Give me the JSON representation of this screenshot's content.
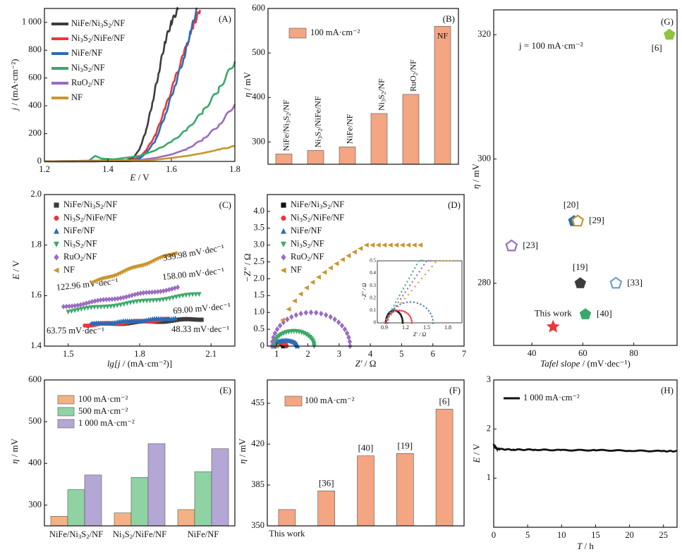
{
  "chart_data": [
    {
      "panel": "(A)",
      "type": "line",
      "xlabel_main": "E",
      "xlabel_unit": " / V",
      "ylabel_main": "j",
      "ylabel_unit": " / (mA·cm⁻²)",
      "xlim": [
        1.2,
        1.8
      ],
      "ylim": [
        0,
        1100
      ],
      "xticks": [
        1.2,
        1.4,
        1.6,
        1.8
      ],
      "xtick_labels": [
        "1.2",
        "1.4",
        "1.6",
        "1.8"
      ],
      "yticks": [
        0,
        200,
        400,
        600,
        800,
        1000
      ],
      "ytick_labels": [
        "0",
        "200",
        "400",
        "600",
        "800",
        "1 000"
      ],
      "legend_position": "top-left",
      "series": [
        {
          "name": "NiFe/Ni3S2/NF",
          "color": "#3c3c3c",
          "x": [
            1.2,
            1.45,
            1.48,
            1.5,
            1.52,
            1.54,
            1.56,
            1.58,
            1.6,
            1.62
          ],
          "y": [
            0,
            2,
            25,
            90,
            220,
            420,
            640,
            860,
            1000,
            1090
          ]
        },
        {
          "name": "Ni3S2/NiFe/NF",
          "color": "#e8383d",
          "x": [
            1.2,
            1.46,
            1.5,
            1.52,
            1.55,
            1.58,
            1.61,
            1.64,
            1.67,
            1.69
          ],
          "y": [
            0,
            2,
            30,
            80,
            190,
            380,
            580,
            780,
            980,
            1090
          ]
        },
        {
          "name": "NiFe/NF",
          "color": "#2b6cb8",
          "x": [
            1.2,
            1.47,
            1.5,
            1.52,
            1.55,
            1.58,
            1.61,
            1.64,
            1.66,
            1.68
          ],
          "y": [
            0,
            2,
            20,
            60,
            150,
            330,
            540,
            750,
            930,
            1090
          ]
        },
        {
          "name": "Ni3S2/NF",
          "color": "#3aa86a",
          "x": [
            1.2,
            1.34,
            1.36,
            1.38,
            1.42,
            1.5,
            1.55,
            1.6,
            1.65,
            1.7,
            1.75,
            1.8
          ],
          "y": [
            0,
            5,
            40,
            20,
            15,
            40,
            80,
            140,
            230,
            360,
            520,
            720
          ]
        },
        {
          "name": "RuO2/NF",
          "color": "#9a6cc0",
          "x": [
            1.2,
            1.5,
            1.55,
            1.6,
            1.65,
            1.7,
            1.75,
            1.8
          ],
          "y": [
            0,
            10,
            25,
            50,
            90,
            160,
            260,
            410
          ]
        },
        {
          "name": "NF",
          "color": "#c8962e",
          "x": [
            1.2,
            1.5,
            1.55,
            1.6,
            1.65,
            1.7,
            1.75,
            1.8
          ],
          "y": [
            0,
            5,
            12,
            25,
            40,
            60,
            85,
            110
          ]
        }
      ]
    },
    {
      "panel": "(B)",
      "type": "bar",
      "ylabel_main": "η",
      "ylabel_unit": " / mV",
      "ylim": [
        250,
        600
      ],
      "yticks": [
        300,
        400,
        500,
        600
      ],
      "ytick_labels": [
        "300",
        "400",
        "500",
        "600"
      ],
      "legend_label": "100 mA·cm⁻²",
      "bar_color": "#f4a582",
      "categories": [
        "NiFe/Ni3S2/NF",
        "Ni3S2/NiFe/NF",
        "NiFe/NF",
        "Ni3S2/NF",
        "RuO2/NF",
        "NF"
      ],
      "values": [
        273,
        281,
        289,
        364,
        407,
        560
      ]
    },
    {
      "panel": "(C)",
      "type": "scatter",
      "xlabel_main": "lg[j",
      "xlabel_unit": " / (mA·cm⁻²)]",
      "ylabel_main": "E",
      "ylabel_unit": " / V",
      "xlim": [
        1.4,
        2.2
      ],
      "ylim": [
        1.4,
        2.0
      ],
      "xticks": [
        1.5,
        1.8,
        2.1
      ],
      "xtick_labels": [
        "1.5",
        "1.8",
        "2.1"
      ],
      "yticks": [
        1.4,
        1.6,
        1.8,
        2.0
      ],
      "ytick_labels": [
        "1.4",
        "1.6",
        "1.8",
        "2.0"
      ],
      "legend_position": "top-left",
      "series": [
        {
          "name": "NiFe/Ni3S2/NF",
          "color": "#3c3c3c",
          "marker": "square",
          "x_range": [
            1.6,
            2.06
          ],
          "slope": 0.04833,
          "y_start": 1.485,
          "label": "48.33 mV·dec⁻¹"
        },
        {
          "name": "Ni3S2/NiFe/NF",
          "color": "#e8383d",
          "marker": "circle",
          "x_range": [
            1.57,
            1.92
          ],
          "slope": 0.06375,
          "y_start": 1.483,
          "label": "63.75 mV·dec⁻¹"
        },
        {
          "name": "NiFe/NF",
          "color": "#2b6cb8",
          "marker": "triangle-up",
          "x_range": [
            1.6,
            1.95
          ],
          "slope": 0.069,
          "y_start": 1.488,
          "label": "69.00 mV·dec⁻¹"
        },
        {
          "name": "Ni3S2/NF",
          "color": "#3aa86a",
          "marker": "triangle-down",
          "x_range": [
            1.5,
            2.05
          ],
          "slope": 0.12296,
          "y_start": 1.538,
          "label": "122.96 mV·dec⁻¹"
        },
        {
          "name": "RuO2/NF",
          "color": "#9a6cc0",
          "marker": "diamond",
          "x_range": [
            1.48,
            1.96
          ],
          "slope": 0.158,
          "y_start": 1.555,
          "label": "158.00 mV·dec⁻¹"
        },
        {
          "name": "NF",
          "color": "#c8962e",
          "marker": "triangle-left",
          "x_range": [
            1.6,
            1.95
          ],
          "slope": 0.33998,
          "y_start": 1.652,
          "label": "339.98 mV·dec⁻¹"
        }
      ]
    },
    {
      "panel": "(D)",
      "type": "scatter",
      "xlabel_main": "Z′",
      "xlabel_unit": " / Ω",
      "ylabel_main": "−Z″",
      "ylabel_unit": " / Ω",
      "xlim": [
        0.7,
        7
      ],
      "ylim": [
        0,
        4.5
      ],
      "xticks": [
        1,
        2,
        3,
        4,
        5,
        6,
        7
      ],
      "xtick_labels": [
        "1",
        "2",
        "3",
        "4",
        "5",
        "6",
        "7"
      ],
      "yticks": [
        0,
        0.5,
        1,
        1.5,
        2,
        2.5,
        3,
        3.5,
        4
      ],
      "ytick_labels": [
        "0",
        "0.5",
        "1.0",
        "1.5",
        "2.0",
        "2.5",
        "3.0",
        "3.5",
        "4.0"
      ],
      "legend_position": "top-left",
      "inset": {
        "xlabel": "Z′ / Ω",
        "ylabel": "−Z″ / Ω",
        "xlim": [
          0.8,
          2.0
        ],
        "ylim": [
          0,
          0.5
        ],
        "xticks": [
          0.9,
          1.2,
          1.5,
          1.8
        ],
        "xtick_labels": [
          "0.9",
          "1.2",
          "1.5",
          "1.8"
        ],
        "yticks": [
          0,
          0.1,
          0.2,
          0.3,
          0.4,
          0.5
        ],
        "ytick_labels": [
          "0",
          "0.1",
          "0.2",
          "0.3",
          "0.4",
          "0.5"
        ]
      },
      "series": [
        {
          "name": "NiFe/Ni3S2/NF",
          "color": "#111111",
          "marker": "square",
          "center": 1.07,
          "radius": 0.15,
          "scale": 0.65
        },
        {
          "name": "Ni3S2/NiFe/NF",
          "color": "#e8383d",
          "marker": "circle",
          "center": 1.11,
          "radius": 0.2,
          "scale": 0.5
        },
        {
          "name": "NiFe/NF",
          "color": "#2b6cb8",
          "marker": "triangle-up",
          "center": 1.28,
          "radius": 0.38,
          "scale": 0.45
        },
        {
          "name": "Ni3S2/NF",
          "color": "#3aa86a",
          "marker": "triangle-down",
          "center": 1.55,
          "radius": 0.65,
          "scale": 0.68
        },
        {
          "name": "RuO2/NF",
          "color": "#9a6cc0",
          "marker": "diamond",
          "center": 2.1,
          "radius": 1.25,
          "scale": 0.8
        },
        {
          "name": "NF",
          "color": "#c8962e",
          "marker": "triangle-left",
          "center": 3.9,
          "radius": 3.0,
          "scale": 1.0
        }
      ]
    },
    {
      "panel": "(E)",
      "type": "bar",
      "ylabel_main": "η",
      "ylabel_unit": " / mV",
      "ylim": [
        250,
        600
      ],
      "yticks": [
        300,
        400,
        500,
        600
      ],
      "ytick_labels": [
        "300",
        "400",
        "500",
        "600"
      ],
      "categories": [
        "NiFe/Ni3S2/NF",
        "Ni3S2/NiFe/NF",
        "NiFe/NF"
      ],
      "series": [
        {
          "name": "100 mA·cm⁻²",
          "color": "#f4b183",
          "values": [
            273,
            281,
            289
          ]
        },
        {
          "name": "500 mA·cm⁻²",
          "color": "#8fd3a4",
          "values": [
            337,
            366,
            380
          ]
        },
        {
          "name": "1 000 mA·cm⁻²",
          "color": "#b4a7d6",
          "values": [
            372,
            447,
            435
          ]
        }
      ]
    },
    {
      "panel": "(F)",
      "type": "bar",
      "ylabel_main": "η",
      "ylabel_unit": " / mV",
      "ylim": [
        350,
        475
      ],
      "yticks": [
        350,
        385,
        420,
        455
      ],
      "ytick_labels": [
        "350",
        "385",
        "420",
        "455"
      ],
      "legend_label": "100 mA·cm⁻²",
      "bar_color": "#f4a582",
      "categories": [
        "This work",
        "[36]",
        "[40]",
        "[19]",
        "[6]"
      ],
      "values": [
        364,
        380,
        410,
        412,
        450
      ]
    },
    {
      "panel": "(G)",
      "type": "scatter",
      "xlabel_main": "Tafel slope",
      "xlabel_unit": " / (mV·dec⁻¹)",
      "ylabel_main": "η",
      "ylabel_unit": " / mV",
      "xlim": [
        25,
        97
      ],
      "ylim": [
        270,
        324
      ],
      "xticks": [
        40,
        60,
        80
      ],
      "xtick_labels": [
        "40",
        "60",
        "80"
      ],
      "yticks": [
        280,
        300,
        320
      ],
      "ytick_labels": [
        "280",
        "300",
        "320"
      ],
      "annotation": "j = 100 mA·cm⁻²",
      "points": [
        {
          "label": "This work",
          "x": 48.33,
          "y": 273,
          "color": "#e8383d",
          "marker": "star"
        },
        {
          "label": "[40]",
          "x": 61,
          "y": 275,
          "color": "#3aa86a",
          "marker": "pentagon"
        },
        {
          "label": "[19]",
          "x": 59,
          "y": 280,
          "color": "#3c3c3c",
          "marker": "pentagon"
        },
        {
          "label": "[33]",
          "x": 73,
          "y": 280,
          "color": "#6a9fd0",
          "marker": "pentagon-open"
        },
        {
          "label": "[23]",
          "x": 32,
          "y": 286,
          "color": "#9a6cc0",
          "marker": "pentagon-open"
        },
        {
          "label": "[20]",
          "x": 56.5,
          "y": 290,
          "color": "#2b6cb8",
          "marker": "pentagon"
        },
        {
          "label": "[29]",
          "x": 58,
          "y": 290,
          "color": "#c8962e",
          "marker": "pentagon-open"
        },
        {
          "label": "[6]",
          "x": 94,
          "y": 320,
          "color": "#8cc63f",
          "marker": "pentagon"
        }
      ]
    },
    {
      "panel": "(H)",
      "type": "line",
      "xlabel_main": "T",
      "xlabel_unit": " / h",
      "ylabel_main": "E",
      "ylabel_unit": " / V",
      "xlim": [
        0,
        27
      ],
      "ylim": [
        0,
        3
      ],
      "xticks": [
        0,
        5,
        10,
        15,
        20,
        25
      ],
      "xtick_labels": [
        "0",
        "5",
        "10",
        "15",
        "20",
        "25"
      ],
      "yticks": [
        1,
        2,
        3
      ],
      "ytick_labels": [
        "1",
        "2",
        "3"
      ],
      "legend_position": "top-left",
      "series": [
        {
          "name": "1 000 mA·cm⁻²",
          "color": "#111111",
          "x": [
            0,
            0.2,
            0.5,
            1,
            3,
            6,
            10,
            15,
            20,
            25,
            27
          ],
          "y": [
            1.68,
            1.63,
            1.6,
            1.59,
            1.58,
            1.58,
            1.57,
            1.57,
            1.56,
            1.55,
            1.55
          ]
        }
      ]
    }
  ]
}
